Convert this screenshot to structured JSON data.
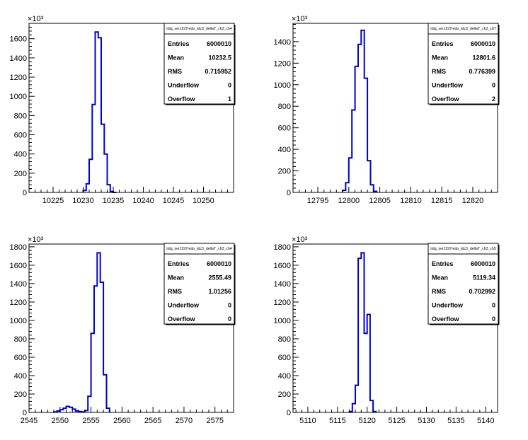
{
  "chart_data": [
    {
      "type": "bar",
      "stats_title": "tdig_ser1197redo_tdc3_deltaT_ch2_ch4",
      "stats": {
        "Entries": "6000010",
        "Mean": "10232.5",
        "RMS": "0.715952",
        "Underflow": "0",
        "Overflow": "1"
      },
      "exponent_label": "×10³",
      "xlim": [
        10221,
        10255
      ],
      "ylim": [
        0,
        1760
      ],
      "xticks": [
        10225,
        10230,
        10235,
        10240,
        10245,
        10250
      ],
      "xtick_labels": [
        "10225",
        "10230",
        "10235",
        "10240",
        "10245",
        "10250"
      ],
      "yticks": [
        0,
        200,
        400,
        600,
        800,
        1000,
        1200,
        1400,
        1600
      ],
      "ytick_labels": [
        "0",
        "200",
        "400",
        "600",
        "800",
        "1000",
        "1200",
        "1400",
        "1600"
      ],
      "bin_width": 0.5,
      "x": [
        10230,
        10230.5,
        10231,
        10231.5,
        10232,
        10232.5,
        10233,
        10233.5,
        10234,
        10234.5,
        10235
      ],
      "values": [
        20,
        90,
        345,
        915,
        1670,
        1610,
        710,
        400,
        80,
        10,
        0
      ]
    },
    {
      "type": "bar",
      "stats_title": "tdig_ser1197redo_tdc3_deltaT_ch2_ch7",
      "stats": {
        "Entries": "6000010",
        "Mean": "12801.6",
        "RMS": "0.776399",
        "Underflow": "0",
        "Overflow": "2"
      },
      "exponent_label": "×10³",
      "xlim": [
        12791,
        12824
      ],
      "ylim": [
        0,
        1570
      ],
      "xticks": [
        12795,
        12800,
        12805,
        12810,
        12815,
        12820
      ],
      "xtick_labels": [
        "12795",
        "12800",
        "12805",
        "12810",
        "12815",
        "12820"
      ],
      "yticks": [
        0,
        200,
        400,
        600,
        800,
        1000,
        1200,
        1400
      ],
      "ytick_labels": [
        "0",
        "200",
        "400",
        "600",
        "800",
        "1000",
        "1200",
        "1400"
      ],
      "bin_width": 0.5,
      "x": [
        12799,
        12799.5,
        12800,
        12800.5,
        12801,
        12801.5,
        12802,
        12802.5,
        12803,
        12803.5,
        12804
      ],
      "values": [
        20,
        90,
        320,
        765,
        1170,
        1375,
        1505,
        1060,
        295,
        70,
        10
      ]
    },
    {
      "type": "bar",
      "stats_title": "tdig_ser1197redo_tdc3_deltaT_ch3_ch4",
      "stats": {
        "Entries": "6000010",
        "Mean": "2555.49",
        "RMS": "1.01256",
        "Underflow": "0",
        "Overflow": "0"
      },
      "exponent_label": "×10³",
      "xlim": [
        2545,
        2578
      ],
      "ylim": [
        0,
        1830
      ],
      "xticks": [
        2545,
        2550,
        2555,
        2560,
        2565,
        2570,
        2575
      ],
      "xtick_labels": [
        "2545",
        "2550",
        "2555",
        "2560",
        "2565",
        "2570",
        "2575"
      ],
      "yticks": [
        0,
        200,
        400,
        600,
        800,
        1000,
        1200,
        1400,
        1600,
        1800
      ],
      "ytick_labels": [
        "0",
        "200",
        "400",
        "600",
        "800",
        "1000",
        "1200",
        "1400",
        "1600",
        "1800"
      ],
      "bin_width": 0.5,
      "x": [
        2549,
        2549.5,
        2550,
        2550.5,
        2551,
        2551.5,
        2552,
        2552.5,
        2553,
        2553.5,
        2554,
        2554.5,
        2555,
        2555.5,
        2556,
        2556.5,
        2557,
        2557.5
      ],
      "values": [
        5,
        15,
        30,
        45,
        65,
        55,
        35,
        15,
        10,
        5,
        20,
        175,
        860,
        1375,
        1735,
        1415,
        410,
        45
      ]
    },
    {
      "type": "bar",
      "stats_title": "tdig_ser1197redo_tdc3_deltaT_ch3_ch5",
      "stats": {
        "Entries": "6000010",
        "Mean": "5119.34",
        "RMS": "0.702992",
        "Underflow": "0",
        "Overflow": "0"
      },
      "exponent_label": "×10³",
      "xlim": [
        5107.5,
        5142
      ],
      "ylim": [
        0,
        1830
      ],
      "xticks": [
        5110,
        5115,
        5120,
        5125,
        5130,
        5135,
        5140
      ],
      "xtick_labels": [
        "5110",
        "5115",
        "5120",
        "5125",
        "5130",
        "5135",
        "5140"
      ],
      "yticks": [
        0,
        200,
        400,
        600,
        800,
        1000,
        1200,
        1400,
        1600,
        1800
      ],
      "ytick_labels": [
        "0",
        "200",
        "400",
        "600",
        "800",
        "1000",
        "1200",
        "1400",
        "1600",
        "1800"
      ],
      "bin_width": 0.5,
      "x": [
        5117,
        5117.5,
        5118,
        5118.5,
        5119,
        5119.5,
        5120,
        5120.5,
        5121
      ],
      "values": [
        10,
        95,
        295,
        1675,
        1735,
        860,
        1065,
        130,
        10
      ]
    }
  ],
  "colors": {
    "line": "#0000cc",
    "axis": "#000000"
  }
}
